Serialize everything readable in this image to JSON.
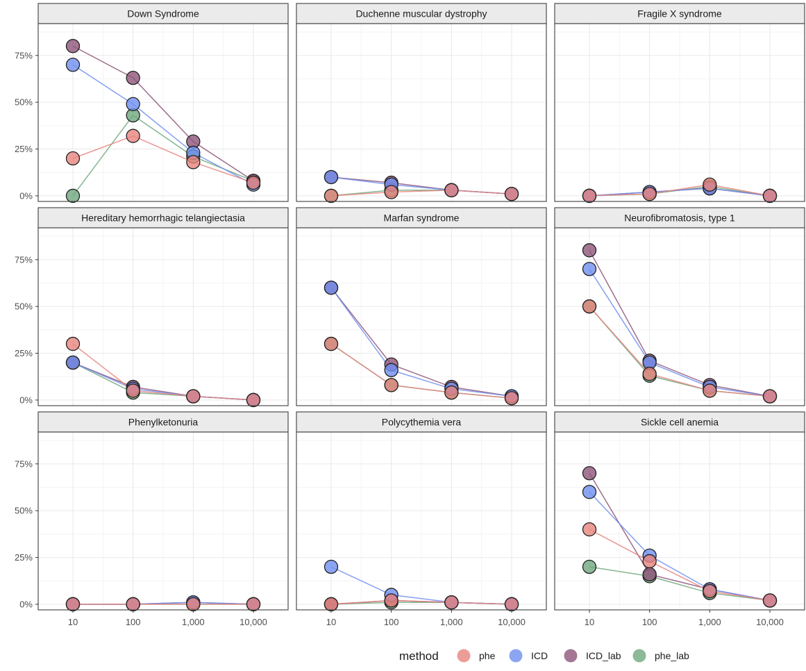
{
  "chart_data": {
    "type": "line",
    "x_scale": "log10",
    "x": [
      10,
      100,
      1000,
      10000
    ],
    "x_tick_labels": [
      "10",
      "100",
      "1,000",
      "10,000"
    ],
    "y_tick_labels": [
      "0%",
      "25%",
      "50%",
      "75%"
    ],
    "y_ticks": [
      0,
      0.25,
      0.5,
      0.75
    ],
    "ylim": [
      -0.03,
      0.92
    ],
    "grid": true,
    "legend": {
      "title": "method",
      "position": "bottom",
      "entries": [
        {
          "name": "phe",
          "color": "#E8847E"
        },
        {
          "name": "ICD",
          "color": "#6F8EF0"
        },
        {
          "name": "ICD_lab",
          "color": "#8E5579"
        },
        {
          "name": "phe_lab",
          "color": "#6FA87E"
        }
      ]
    },
    "panels": [
      {
        "title": "Down Syndrome",
        "series": [
          {
            "name": "phe",
            "values": [
              0.2,
              0.32,
              0.18,
              0.07
            ]
          },
          {
            "name": "ICD",
            "values": [
              0.7,
              0.49,
              0.23,
              0.06
            ]
          },
          {
            "name": "ICD_lab",
            "values": [
              0.8,
              0.63,
              0.29,
              0.08
            ]
          },
          {
            "name": "phe_lab",
            "values": [
              0.0,
              0.43,
              0.21,
              0.08
            ]
          }
        ]
      },
      {
        "title": "Duchenne muscular dystrophy",
        "series": [
          {
            "name": "phe",
            "values": [
              0.0,
              0.02,
              0.03,
              0.01
            ]
          },
          {
            "name": "ICD",
            "values": [
              0.1,
              0.06,
              0.03,
              0.01
            ]
          },
          {
            "name": "ICD_lab",
            "values": [
              0.1,
              0.07,
              0.03,
              0.01
            ]
          },
          {
            "name": "phe_lab",
            "values": [
              0.0,
              0.03,
              0.03,
              0.01
            ]
          }
        ]
      },
      {
        "title": "Fragile X syndrome",
        "series": [
          {
            "name": "phe",
            "values": [
              0.0,
              0.01,
              0.06,
              0.0
            ]
          },
          {
            "name": "ICD",
            "values": [
              0.0,
              0.02,
              0.04,
              0.0
            ]
          },
          {
            "name": "ICD_lab",
            "values": [
              0.0,
              0.02,
              0.04,
              0.0
            ]
          },
          {
            "name": "phe_lab",
            "values": [
              0.0,
              0.01,
              0.05,
              0.0
            ]
          }
        ]
      },
      {
        "title": "Hereditary hemorrhagic telangiectasia",
        "series": [
          {
            "name": "phe",
            "values": [
              0.3,
              0.05,
              0.02,
              0.0
            ]
          },
          {
            "name": "ICD",
            "values": [
              0.2,
              0.06,
              0.02,
              0.0
            ]
          },
          {
            "name": "ICD_lab",
            "values": [
              0.2,
              0.07,
              0.02,
              0.0
            ]
          },
          {
            "name": "phe_lab",
            "values": [
              0.2,
              0.04,
              0.02,
              0.0
            ]
          }
        ]
      },
      {
        "title": "Marfan syndrome",
        "series": [
          {
            "name": "phe",
            "values": [
              0.3,
              0.08,
              0.04,
              0.01
            ]
          },
          {
            "name": "ICD",
            "values": [
              0.6,
              0.16,
              0.06,
              0.02
            ]
          },
          {
            "name": "ICD_lab",
            "values": [
              0.6,
              0.19,
              0.07,
              0.02
            ]
          },
          {
            "name": "phe_lab",
            "values": [
              0.3,
              0.08,
              0.04,
              0.01
            ]
          }
        ]
      },
      {
        "title": "Neurofibromatosis, type 1",
        "series": [
          {
            "name": "phe",
            "values": [
              0.5,
              0.14,
              0.05,
              0.02
            ]
          },
          {
            "name": "ICD",
            "values": [
              0.7,
              0.2,
              0.07,
              0.02
            ]
          },
          {
            "name": "ICD_lab",
            "values": [
              0.8,
              0.21,
              0.08,
              0.02
            ]
          },
          {
            "name": "phe_lab",
            "values": [
              0.5,
              0.13,
              0.05,
              0.02
            ]
          }
        ]
      },
      {
        "title": "Phenylketonuria",
        "series": [
          {
            "name": "phe",
            "values": [
              0.0,
              0.0,
              0.0,
              0.0
            ]
          },
          {
            "name": "ICD",
            "values": [
              0.0,
              0.0,
              0.01,
              0.0
            ]
          },
          {
            "name": "ICD_lab",
            "values": [
              0.0,
              0.0,
              0.01,
              0.0
            ]
          },
          {
            "name": "phe_lab",
            "values": [
              0.0,
              0.0,
              0.0,
              0.0
            ]
          }
        ]
      },
      {
        "title": "Polycythemia vera",
        "series": [
          {
            "name": "phe",
            "values": [
              0.0,
              0.02,
              0.01,
              0.0
            ]
          },
          {
            "name": "ICD",
            "values": [
              0.2,
              0.05,
              0.01,
              0.0
            ]
          },
          {
            "name": "ICD_lab",
            "values": [
              0.0,
              0.02,
              0.01,
              0.0
            ]
          },
          {
            "name": "phe_lab",
            "values": [
              0.0,
              0.01,
              0.01,
              0.0
            ]
          }
        ]
      },
      {
        "title": "Sickle cell anemia",
        "series": [
          {
            "name": "phe",
            "values": [
              0.4,
              0.23,
              0.07,
              0.02
            ]
          },
          {
            "name": "ICD",
            "values": [
              0.6,
              0.26,
              0.08,
              0.02
            ]
          },
          {
            "name": "ICD_lab",
            "values": [
              0.7,
              0.16,
              0.08,
              0.02
            ]
          },
          {
            "name": "phe_lab",
            "values": [
              0.2,
              0.15,
              0.06,
              0.02
            ]
          }
        ]
      }
    ]
  }
}
